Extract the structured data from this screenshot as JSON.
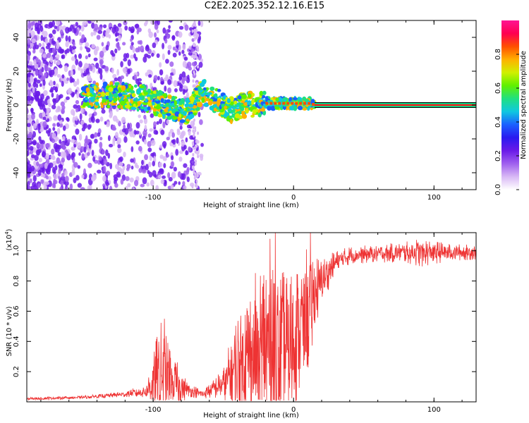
{
  "title": "C2E2.2025.352.12.16.E15",
  "colors": {
    "trace": "#ee3333",
    "axis": "#000000",
    "line_core": "#ff1a1a",
    "line_edge": "#00dd88"
  },
  "chart_data": [
    {
      "type": "heatmap",
      "xlabel": "Height of straight line (km)",
      "ylabel": "Frequency (Hz)",
      "xlim": [
        -190,
        130
      ],
      "ylim": [
        -50,
        50
      ],
      "xticks": [
        -100,
        0,
        100
      ],
      "xtick_labels": [
        "-100",
        "0",
        "100"
      ],
      "yticks": [
        -40,
        -20,
        0,
        20,
        40
      ],
      "ytick_labels": [
        "-40",
        "-20",
        "0",
        "20",
        "40"
      ],
      "colorbar": {
        "label": "Normalized spectral amplitude",
        "range": [
          0,
          1
        ],
        "ticks": [
          0.0,
          0.2,
          0.4,
          0.6,
          0.8
        ],
        "tick_labels": [
          "0.0",
          "0.2",
          "0.4",
          "0.6",
          "0.8"
        ],
        "stops": [
          "#ffffff",
          "#d8b8f5",
          "#a060ee",
          "#6a1ae8",
          "#2a1af0",
          "#1a60ff",
          "#10c8e0",
          "#20e080",
          "#60f000",
          "#d0f000",
          "#ffb000",
          "#ff5000",
          "#ff0050",
          "#ff1493"
        ]
      },
      "band_track": [
        {
          "x": -150,
          "f": 5
        },
        {
          "x": -125,
          "f": 6
        },
        {
          "x": -105,
          "f": 4
        },
        {
          "x": -90,
          "f": -1
        },
        {
          "x": -75,
          "f": -4
        },
        {
          "x": -65,
          "f": 8
        },
        {
          "x": -55,
          "f": 3
        },
        {
          "x": -45,
          "f": -3
        },
        {
          "x": -35,
          "f": 0
        },
        {
          "x": -20,
          "f": 1
        },
        {
          "x": -5,
          "f": 1
        },
        {
          "x": 10,
          "f": 1
        },
        {
          "x": 15,
          "f": 0
        }
      ],
      "tone": {
        "x_start": 15,
        "x_end": 130,
        "frequency": 0
      }
    },
    {
      "type": "line",
      "xlabel": "Height of straight line (km)",
      "ylabel": "SNR (10 * v/v)",
      "scale_label": "(x10",
      "scale_exponent": "4",
      "scale_close": ")",
      "xlim": [
        -190,
        130
      ],
      "ylim": [
        0,
        1.12
      ],
      "xticks": [
        -100,
        0,
        100
      ],
      "xtick_labels": [
        "-100",
        "0",
        "100"
      ],
      "yticks": [
        0.2,
        0.4,
        0.6,
        0.8,
        1.0
      ],
      "ytick_labels": [
        "0.2",
        "0.4",
        "0.6",
        "0.8",
        "1.0"
      ],
      "envelope": [
        {
          "x": -190,
          "base": 0.02,
          "amp": 0.01
        },
        {
          "x": -150,
          "base": 0.03,
          "amp": 0.01
        },
        {
          "x": -120,
          "base": 0.05,
          "amp": 0.02
        },
        {
          "x": -105,
          "base": 0.07,
          "amp": 0.05
        },
        {
          "x": -95,
          "base": 0.2,
          "amp": 0.35
        },
        {
          "x": -85,
          "base": 0.12,
          "amp": 0.18
        },
        {
          "x": -75,
          "base": 0.08,
          "amp": 0.05
        },
        {
          "x": -65,
          "base": 0.05,
          "amp": 0.03
        },
        {
          "x": -50,
          "base": 0.12,
          "amp": 0.1
        },
        {
          "x": -40,
          "base": 0.22,
          "amp": 0.4
        },
        {
          "x": -30,
          "base": 0.3,
          "amp": 0.5
        },
        {
          "x": -15,
          "base": 0.35,
          "amp": 0.78
        },
        {
          "x": -10,
          "base": 0.3,
          "amp": 0.6
        },
        {
          "x": 0,
          "base": 0.4,
          "amp": 0.5
        },
        {
          "x": 10,
          "base": 0.6,
          "amp": 0.45
        },
        {
          "x": 20,
          "base": 0.8,
          "amp": 0.15
        },
        {
          "x": 30,
          "base": 0.92,
          "amp": 0.08
        },
        {
          "x": 40,
          "base": 0.97,
          "amp": 0.06
        },
        {
          "x": 60,
          "base": 0.98,
          "amp": 0.06
        },
        {
          "x": 80,
          "base": 0.99,
          "amp": 0.07
        },
        {
          "x": 90,
          "base": 0.99,
          "amp": 0.1
        },
        {
          "x": 110,
          "base": 0.99,
          "amp": 0.06
        },
        {
          "x": 130,
          "base": 0.99,
          "amp": 0.05
        }
      ],
      "peaks": [
        {
          "x": -92,
          "y": 0.55
        },
        {
          "x": -13,
          "y": 1.12
        },
        {
          "x": 12,
          "y": 1.12
        }
      ]
    }
  ]
}
